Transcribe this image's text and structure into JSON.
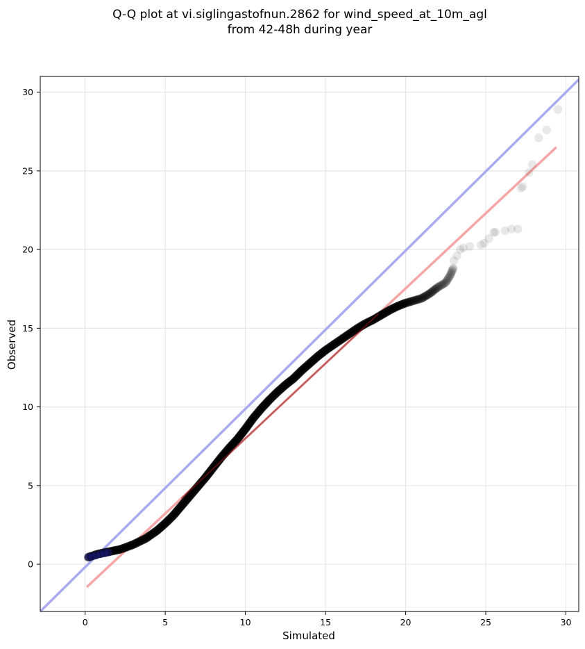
{
  "chart_data": {
    "type": "scatter",
    "title_lines": [
      "Q-Q plot at vi.siglingastofnun.2862 for wind_speed_at_10m_agl",
      "from 42-48h during year"
    ],
    "xlabel": "Simulated",
    "ylabel": "Observed",
    "xlim": [
      -2.8,
      30.8
    ],
    "ylim": [
      -3.0,
      31.0
    ],
    "xticks": [
      0,
      5,
      10,
      15,
      20,
      25,
      30
    ],
    "yticks": [
      0,
      5,
      10,
      15,
      20,
      25,
      30
    ],
    "grid": true,
    "quantile_curve": [
      [
        0.2,
        0.45
      ],
      [
        0.8,
        0.65
      ],
      [
        1.5,
        0.8
      ],
      [
        2.2,
        0.95
      ],
      [
        3.0,
        1.25
      ],
      [
        3.8,
        1.65
      ],
      [
        4.5,
        2.15
      ],
      [
        5.0,
        2.6
      ],
      [
        5.5,
        3.1
      ],
      [
        6.0,
        3.7
      ],
      [
        6.5,
        4.3
      ],
      [
        7.0,
        4.9
      ],
      [
        7.5,
        5.5
      ],
      [
        8.0,
        6.15
      ],
      [
        8.5,
        6.8
      ],
      [
        9.0,
        7.4
      ],
      [
        9.5,
        7.95
      ],
      [
        10.0,
        8.6
      ],
      [
        10.5,
        9.3
      ],
      [
        11.0,
        9.9
      ],
      [
        11.5,
        10.45
      ],
      [
        12.0,
        10.95
      ],
      [
        12.5,
        11.4
      ],
      [
        13.0,
        11.8
      ],
      [
        13.5,
        12.3
      ],
      [
        14.0,
        12.75
      ],
      [
        14.5,
        13.2
      ],
      [
        15.0,
        13.6
      ],
      [
        15.5,
        13.95
      ],
      [
        16.0,
        14.3
      ],
      [
        16.5,
        14.65
      ],
      [
        17.0,
        15.0
      ],
      [
        17.5,
        15.3
      ],
      [
        18.0,
        15.55
      ],
      [
        18.5,
        15.85
      ],
      [
        19.0,
        16.15
      ],
      [
        19.5,
        16.4
      ],
      [
        20.0,
        16.6
      ],
      [
        20.5,
        16.75
      ],
      [
        21.0,
        16.9
      ],
      [
        21.5,
        17.2
      ],
      [
        22.0,
        17.6
      ],
      [
        22.5,
        17.9
      ],
      [
        22.8,
        18.4
      ],
      [
        23.0,
        18.9
      ]
    ],
    "tail_points": [
      [
        23.0,
        19.3
      ],
      [
        23.2,
        19.6
      ],
      [
        23.4,
        20.0
      ],
      [
        23.6,
        20.1
      ],
      [
        24.0,
        20.2
      ],
      [
        24.7,
        20.3
      ],
      [
        24.9,
        20.4
      ],
      [
        25.2,
        20.7
      ],
      [
        25.5,
        21.1
      ],
      [
        25.6,
        21.1
      ],
      [
        26.2,
        21.2
      ],
      [
        26.6,
        21.3
      ],
      [
        27.0,
        21.3
      ],
      [
        27.2,
        23.9
      ],
      [
        27.3,
        24.0
      ],
      [
        27.7,
        24.9
      ],
      [
        27.9,
        25.4
      ],
      [
        28.3,
        27.1
      ],
      [
        28.8,
        27.6
      ],
      [
        29.5,
        28.9
      ]
    ],
    "reference_line": {
      "label": "1:1",
      "color": "#aaaaf0",
      "points": [
        [
          -2.8,
          -3.0
        ],
        [
          31.0,
          31.0
        ]
      ]
    },
    "fit_line": {
      "color": "#f5a6a6",
      "points": [
        [
          0.1,
          -1.45
        ],
        [
          29.4,
          26.5
        ]
      ]
    }
  }
}
